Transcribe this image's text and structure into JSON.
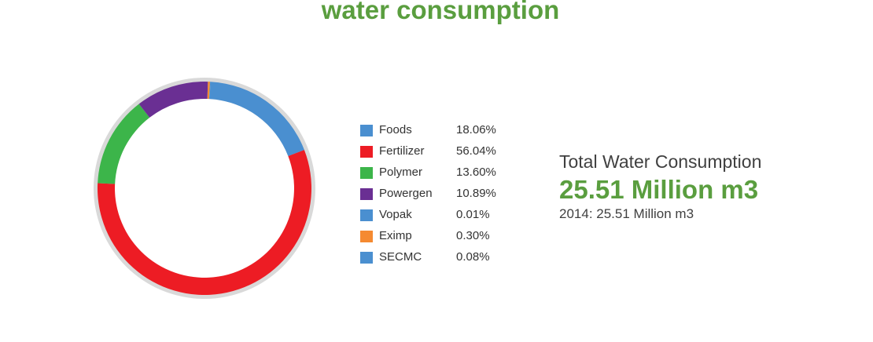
{
  "title": "water consumption",
  "chart_data": {
    "type": "pie",
    "style": "donut",
    "categories": [
      "Foods",
      "Fertilizer",
      "Polymer",
      "Powergen",
      "Vopak",
      "Eximp",
      "SECMC"
    ],
    "values": [
      18.06,
      56.04,
      13.6,
      10.89,
      0.01,
      0.3,
      0.08
    ],
    "value_labels": [
      "18.06%",
      "56.04%",
      "13.60%",
      "10.89%",
      "0.01%",
      "0.30%",
      "0.08%"
    ],
    "colors": [
      "#4a8fd0",
      "#ed1c24",
      "#3cb54a",
      "#6a2f93",
      "#4a8fd0",
      "#f58a31",
      "#4a8fd0"
    ],
    "legend_position": "right",
    "track_color": "#d9d9d9"
  },
  "summary": {
    "label": "Total Water Consumption",
    "value": "25.51 Million m3",
    "previous": "2014: 25.51 Million m3"
  }
}
